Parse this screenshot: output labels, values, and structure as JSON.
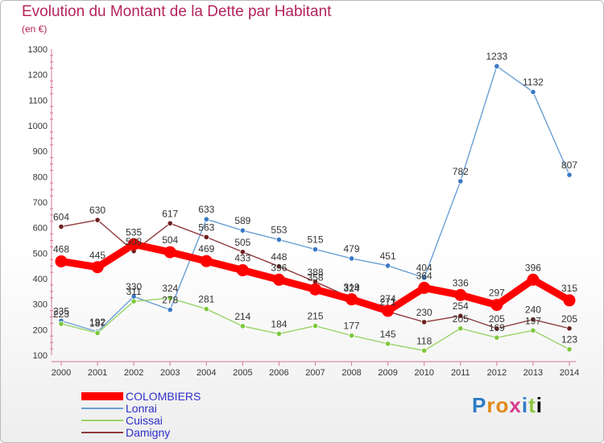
{
  "header": {
    "title": "Evolution du Montant de la Dette par Habitant",
    "unit": "(en €)"
  },
  "logo": {
    "text": "Proxiti"
  },
  "chart_data": {
    "type": "line",
    "title": "Evolution du Montant de la Dette par Habitant",
    "subtitle": "(en €)",
    "x": [
      "2000",
      "2001",
      "2002",
      "2003",
      "2004",
      "2005",
      "2006",
      "2007",
      "2008",
      "2009",
      "2010",
      "2011",
      "2012",
      "2013",
      "2014"
    ],
    "ylim": [
      100,
      1300
    ],
    "yticks": [
      100,
      200,
      300,
      400,
      500,
      600,
      700,
      800,
      900,
      1000,
      1100,
      1200,
      1300
    ],
    "grid": false,
    "legend_position": "bottom-left",
    "series": [
      {
        "name": "COLOMBIERS",
        "color": "#ff0000",
        "emphasis": true,
        "values": [
          468,
          445,
          535,
          504,
          469,
          433,
          396,
          358,
          319,
          274,
          364,
          336,
          297,
          396,
          315
        ]
      },
      {
        "name": "Lonrai",
        "color": "#6a9fd4",
        "marker": "#3a78c6",
        "values": [
          235,
          192,
          330,
          278,
          633,
          589,
          553,
          515,
          479,
          451,
          404,
          782,
          1233,
          1132,
          807
        ]
      },
      {
        "name": "Cuissai",
        "color": "#99d36a",
        "marker": "#7cc83a",
        "values": [
          223,
          187,
          311,
          324,
          281,
          214,
          184,
          215,
          177,
          145,
          118,
          205,
          169,
          197,
          123
        ]
      },
      {
        "name": "Damigny",
        "color": "#8e3a3a",
        "marker": "#6e1e1e",
        "values": [
          604,
          630,
          508,
          617,
          563,
          505,
          448,
          388,
          324,
          271,
          230,
          254,
          205,
          240,
          205
        ]
      }
    ]
  }
}
